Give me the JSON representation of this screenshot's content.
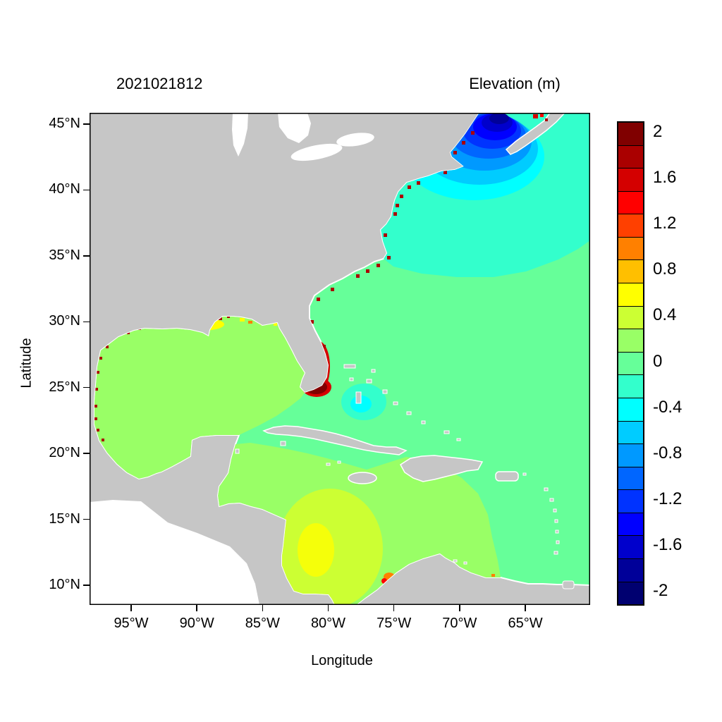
{
  "figure": {
    "run_timestamp": "2021021812",
    "colorbar_title": "Elevation (m)"
  },
  "axes": {
    "x": {
      "label": "Longitude",
      "ticks": [
        "95°W",
        "90°W",
        "85°W",
        "80°W",
        "75°W",
        "70°W",
        "65°W"
      ]
    },
    "y": {
      "label": "Latitude",
      "ticks": [
        "45°N",
        "40°N",
        "35°N",
        "30°N",
        "25°N",
        "20°N",
        "15°N",
        "10°N"
      ]
    }
  },
  "colorbar": {
    "labels": [
      "2",
      "1.6",
      "1.2",
      "0.8",
      "0.4",
      "0",
      "-0.4",
      "-0.8",
      "-1.2",
      "-1.6",
      "-2"
    ],
    "colors_top_to_bottom": [
      "#800000",
      "#AA0000",
      "#D40000",
      "#FF0000",
      "#FF4000",
      "#FF8000",
      "#FFBF00",
      "#FFFF00",
      "#CCFF33",
      "#99FF66",
      "#66FF99",
      "#33FFCC",
      "#00FFFF",
      "#00CCFF",
      "#0099FF",
      "#0066FF",
      "#0033FF",
      "#0000FF",
      "#0000CC",
      "#000099",
      "#000070"
    ]
  },
  "chart_data": {
    "type": "heatmap",
    "title": "Elevation (m)",
    "subtitle": "2021021812",
    "xlabel": "Longitude",
    "ylabel": "Latitude",
    "x_ticks": [
      "95°W",
      "90°W",
      "85°W",
      "80°W",
      "75°W",
      "70°W",
      "65°W"
    ],
    "y_ticks": [
      "45°N",
      "40°N",
      "35°N",
      "30°N",
      "25°N",
      "20°N",
      "15°N",
      "10°N"
    ],
    "xlim_deg_west": [
      98.2,
      60.1
    ],
    "ylim_deg_north": [
      8.5,
      45.9
    ],
    "grid": false,
    "legend_position": "right-colorbar",
    "colorbar": {
      "min": -2,
      "max": 2,
      "tick_step": 0.4,
      "units": "m",
      "n_segments": 21
    },
    "field_values_m": [
      {
        "region": "Gulf of Maine / Bay of Fundy core",
        "value": -2.0
      },
      {
        "region": "New England shelf rings around core",
        "value": -1.0
      },
      {
        "region": "NW Atlantic / Mid-Atlantic Bight broad area",
        "value": -0.3
      },
      {
        "region": "Central and southern North Atlantic",
        "value": -0.1
      },
      {
        "region": "Gulf of Mexico interior",
        "value": 0.15
      },
      {
        "region": "Central Caribbean Sea",
        "value": 0.1
      },
      {
        "region": "SW Caribbean off Nicaragua/Panama/Colombia",
        "value": 0.35
      },
      {
        "region": "South Florida / Biscayne coastal patch",
        "value": 2.0
      },
      {
        "region": "Louisiana coastal band",
        "value": 0.8
      },
      {
        "region": "US East Coast shoreline specks (Maine to Georgia)",
        "value": 2.0
      },
      {
        "region": "Texas / NE Mexico shoreline specks",
        "value": 2.0
      },
      {
        "region": "Bahamas cool patch east of Florida",
        "value": -0.45
      },
      {
        "region": "Gulf of Venezuela patch",
        "value": 0.35
      },
      {
        "region": "Trinidad / Gulf of Paria corner patch",
        "value": 0.8
      },
      {
        "region": "Nova Scotia top-edge specks",
        "value": 1.8
      }
    ],
    "land_color": "#C6C6C6",
    "no_data_color": "#FFFFFF"
  }
}
